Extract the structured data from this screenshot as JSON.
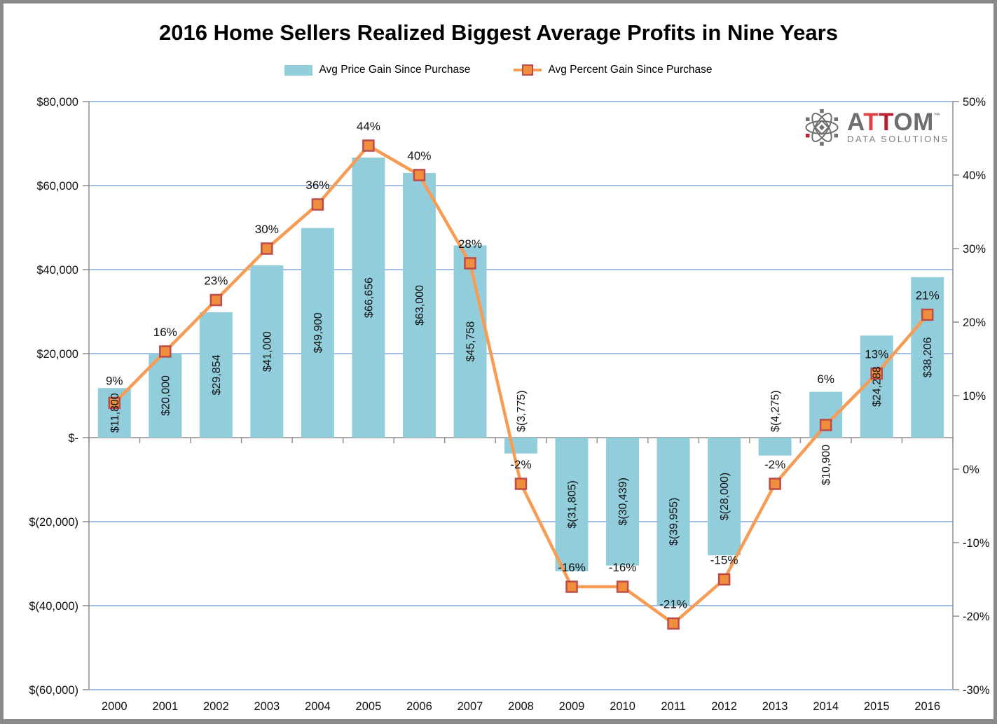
{
  "title": "2016 Home Sellers Realized Biggest Average Profits in Nine Years",
  "legend": [
    {
      "label": "Avg Price Gain Since Purchase",
      "swatch_color": "#92CDDC"
    },
    {
      "label": "Avg Percent Gain Since Purchase",
      "swatch_color": "#F79C55",
      "marker_fill": "#EF8E3C",
      "marker_border": "#BE4B48"
    }
  ],
  "logo": {
    "letters": [
      "A",
      "T",
      "T",
      "O",
      "M"
    ],
    "tm": "™",
    "subtitle": "DATA SOLUTIONS",
    "colors": {
      "gray": "#6D6E71",
      "red_light": "#E04145",
      "red_dark": "#B5212E",
      "subtitle_gray": "#808285",
      "icon_red": "#BE1E2D"
    }
  },
  "chart_data": {
    "type": "combo bar+line, dual axis",
    "categories": [
      "2000",
      "2001",
      "2002",
      "2003",
      "2004",
      "2005",
      "2006",
      "2007",
      "2008",
      "2009",
      "2010",
      "2011",
      "2012",
      "2013",
      "2014",
      "2015",
      "2016"
    ],
    "series": [
      {
        "name": "Avg Price Gain Since Purchase",
        "type": "bar",
        "axis": "left",
        "color": "#92CDDC",
        "values": [
          11800,
          20000,
          29854,
          41000,
          49900,
          66656,
          63000,
          45758,
          -3775,
          -31805,
          -30439,
          -39955,
          -28000,
          -4275,
          10900,
          24288,
          38206
        ],
        "labels": [
          "$11,800",
          "$20,000",
          "$29,854",
          "$41,000",
          "$49,900",
          "$66,656",
          "$63,000",
          "$45,758",
          "$(3,775)",
          "$(31,805)",
          "$(30,439)",
          "$(39,955)",
          "$(28,000)",
          "$(4,275)",
          "$10,900",
          "$24,288",
          "$38,206"
        ],
        "label_placement": [
          "inside",
          "inside",
          "inside",
          "inside",
          "inside",
          "inside",
          "inside",
          "inside",
          "above-axis",
          "inside",
          "inside",
          "inside",
          "inside",
          "above-axis",
          "below-axis",
          "inside",
          "inside"
        ]
      },
      {
        "name": "Avg Percent Gain Since Purchase",
        "type": "line",
        "axis": "right",
        "color": "#F79C55",
        "marker_fill": "#EF8E3C",
        "marker_border": "#BE4B48",
        "values": [
          9,
          16,
          23,
          30,
          36,
          44,
          40,
          28,
          -2,
          -16,
          -16,
          -21,
          -15,
          -2,
          6,
          13,
          21
        ],
        "labels": [
          "9%",
          "16%",
          "23%",
          "30%",
          "36%",
          "44%",
          "40%",
          "28%",
          "-2%",
          "-16%",
          "-16%",
          "-21%",
          "-15%",
          "-2%",
          "6%",
          "13%",
          "21%"
        ]
      }
    ],
    "left_axis": {
      "range": [
        -60000,
        80000
      ],
      "ticks": [
        80000,
        60000,
        40000,
        20000,
        0,
        -20000,
        -40000,
        -60000
      ],
      "labels": [
        "$80,000",
        "$60,000",
        "$40,000",
        "$20,000",
        "$-",
        "$(20,000)",
        "$(40,000)",
        "$(60,000)"
      ]
    },
    "right_axis": {
      "range": [
        -30,
        50
      ],
      "ticks": [
        50,
        40,
        30,
        20,
        10,
        0,
        -10,
        -20,
        -30
      ],
      "labels": [
        "50%",
        "40%",
        "30%",
        "20%",
        "10%",
        "0%",
        "-10%",
        "-20%",
        "-30%"
      ]
    },
    "grid": {
      "color": "#A4BCDF",
      "axis_color": "#8E8E8E"
    },
    "legend_position": "top"
  }
}
